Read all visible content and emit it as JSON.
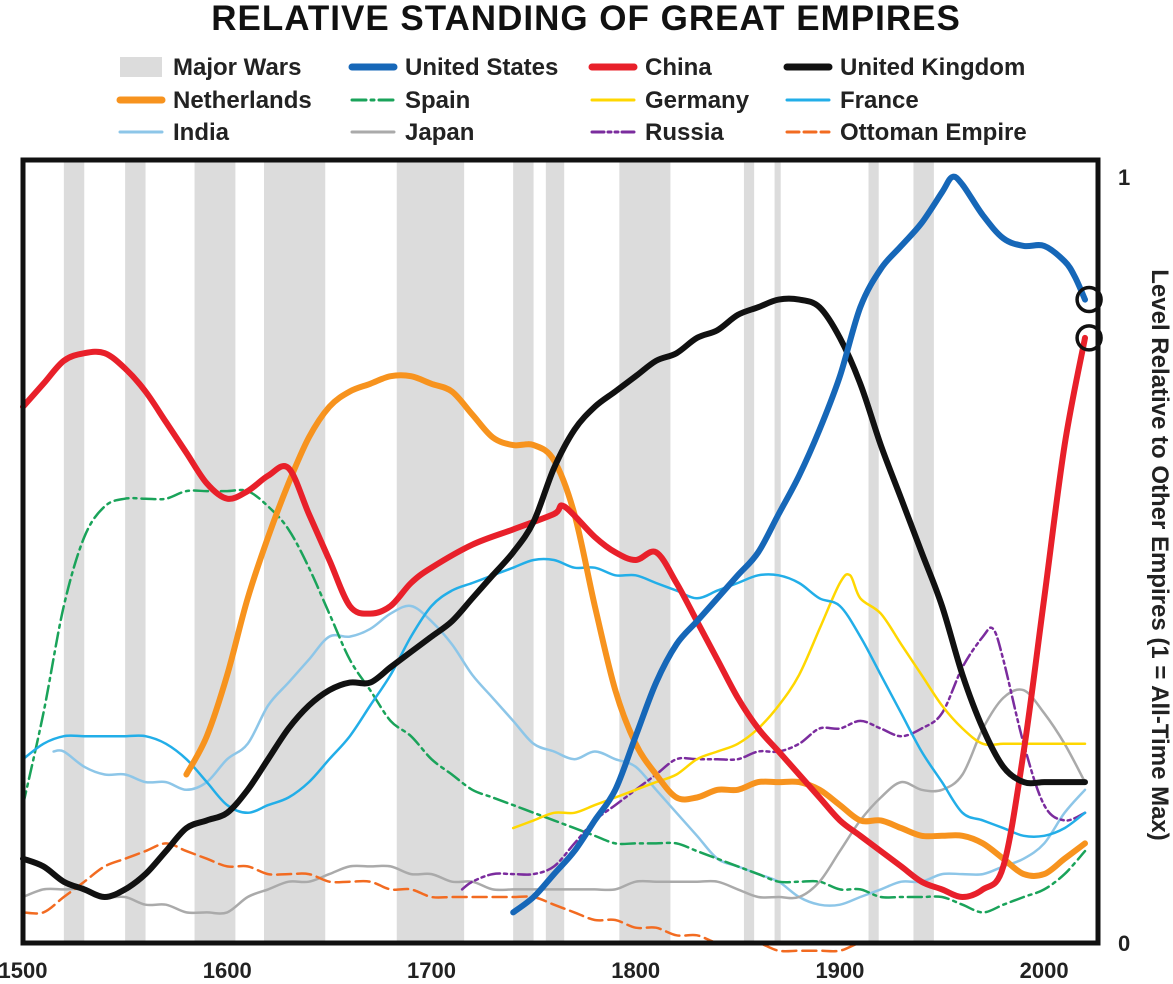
{
  "chart_data": {
    "type": "line",
    "title": "RELATIVE STANDING OF GREAT EMPIRES",
    "xlabel": "",
    "ylabel": "Level Relative to Other Empires (1 = All-Time Max)",
    "xlim": [
      1500,
      2030
    ],
    "ylim": [
      0,
      1
    ],
    "x_ticks": [
      "1500",
      "1600",
      "1700",
      "1800",
      "1900",
      "2000"
    ],
    "y_ticks": [
      "0",
      "1"
    ],
    "major_wars_label": "Major Wars",
    "major_wars_color": "#dcdcdc",
    "major_wars": [
      [
        1520,
        1530
      ],
      [
        1550,
        1560
      ],
      [
        1584,
        1604
      ],
      [
        1618,
        1648
      ],
      [
        1683,
        1716
      ],
      [
        1740,
        1750
      ],
      [
        1756,
        1765
      ],
      [
        1792,
        1817
      ],
      [
        1853,
        1858
      ],
      [
        1868,
        1871
      ],
      [
        1914,
        1919
      ],
      [
        1936,
        1946
      ]
    ],
    "series": [
      {
        "name": "United States",
        "color": "#1667b8",
        "width": 6,
        "dash": "",
        "x": [
          1740,
          1750,
          1760,
          1770,
          1780,
          1790,
          1800,
          1810,
          1820,
          1830,
          1840,
          1850,
          1860,
          1870,
          1880,
          1890,
          1900,
          1910,
          1920,
          1930,
          1940,
          1950,
          1955,
          1960,
          1970,
          1980,
          1990,
          2000,
          2010,
          2015,
          2020
        ],
        "y": [
          0.04,
          0.06,
          0.09,
          0.12,
          0.16,
          0.2,
          0.27,
          0.34,
          0.39,
          0.42,
          0.45,
          0.48,
          0.51,
          0.56,
          0.61,
          0.67,
          0.74,
          0.83,
          0.88,
          0.91,
          0.94,
          0.98,
          1.0,
          0.99,
          0.95,
          0.92,
          0.91,
          0.91,
          0.89,
          0.87,
          0.84
        ]
      },
      {
        "name": "China",
        "color": "#e8202a",
        "width": 6,
        "dash": "",
        "x": [
          1500,
          1510,
          1520,
          1530,
          1540,
          1550,
          1560,
          1570,
          1580,
          1590,
          1600,
          1610,
          1620,
          1630,
          1640,
          1650,
          1660,
          1670,
          1680,
          1690,
          1700,
          1720,
          1740,
          1760,
          1765,
          1780,
          1790,
          1800,
          1810,
          1820,
          1830,
          1840,
          1850,
          1860,
          1870,
          1880,
          1890,
          1900,
          1910,
          1920,
          1930,
          1940,
          1950,
          1960,
          1970,
          1980,
          1990,
          2000,
          2010,
          2020
        ],
        "y": [
          0.7,
          0.73,
          0.76,
          0.77,
          0.77,
          0.75,
          0.72,
          0.68,
          0.64,
          0.6,
          0.58,
          0.59,
          0.61,
          0.62,
          0.56,
          0.5,
          0.44,
          0.43,
          0.44,
          0.47,
          0.49,
          0.52,
          0.54,
          0.56,
          0.57,
          0.53,
          0.51,
          0.5,
          0.51,
          0.47,
          0.42,
          0.37,
          0.32,
          0.28,
          0.25,
          0.22,
          0.19,
          0.16,
          0.14,
          0.12,
          0.1,
          0.08,
          0.07,
          0.06,
          0.07,
          0.1,
          0.25,
          0.45,
          0.65,
          0.79
        ]
      },
      {
        "name": "United Kingdom",
        "color": "#111111",
        "width": 6,
        "dash": "",
        "x": [
          1500,
          1510,
          1520,
          1530,
          1540,
          1550,
          1560,
          1570,
          1580,
          1590,
          1600,
          1610,
          1620,
          1630,
          1640,
          1650,
          1660,
          1670,
          1680,
          1690,
          1700,
          1710,
          1720,
          1730,
          1740,
          1750,
          1760,
          1770,
          1780,
          1790,
          1800,
          1810,
          1820,
          1830,
          1840,
          1850,
          1860,
          1870,
          1880,
          1890,
          1900,
          1910,
          1920,
          1930,
          1940,
          1950,
          1960,
          1970,
          1980,
          1990,
          2000,
          2010,
          2020
        ],
        "y": [
          0.11,
          0.1,
          0.08,
          0.07,
          0.06,
          0.07,
          0.09,
          0.12,
          0.15,
          0.16,
          0.17,
          0.2,
          0.24,
          0.28,
          0.31,
          0.33,
          0.34,
          0.34,
          0.36,
          0.38,
          0.4,
          0.42,
          0.45,
          0.48,
          0.51,
          0.55,
          0.62,
          0.67,
          0.7,
          0.72,
          0.74,
          0.76,
          0.77,
          0.79,
          0.8,
          0.82,
          0.83,
          0.84,
          0.84,
          0.83,
          0.79,
          0.73,
          0.65,
          0.58,
          0.51,
          0.44,
          0.35,
          0.28,
          0.23,
          0.21,
          0.21,
          0.21,
          0.21
        ]
      },
      {
        "name": "Netherlands",
        "color": "#f7931e",
        "width": 6,
        "dash": "",
        "x": [
          1580,
          1590,
          1600,
          1610,
          1620,
          1630,
          1640,
          1650,
          1660,
          1670,
          1680,
          1690,
          1700,
          1710,
          1720,
          1730,
          1740,
          1750,
          1760,
          1770,
          1780,
          1790,
          1800,
          1810,
          1820,
          1830,
          1840,
          1850,
          1860,
          1870,
          1880,
          1890,
          1900,
          1910,
          1920,
          1930,
          1940,
          1950,
          1960,
          1970,
          1980,
          1990,
          2000,
          2010,
          2020
        ],
        "y": [
          0.22,
          0.27,
          0.35,
          0.45,
          0.53,
          0.6,
          0.66,
          0.7,
          0.72,
          0.73,
          0.74,
          0.74,
          0.73,
          0.72,
          0.69,
          0.66,
          0.65,
          0.65,
          0.63,
          0.56,
          0.44,
          0.33,
          0.26,
          0.22,
          0.19,
          0.19,
          0.2,
          0.2,
          0.21,
          0.21,
          0.21,
          0.2,
          0.18,
          0.16,
          0.16,
          0.15,
          0.14,
          0.14,
          0.14,
          0.13,
          0.11,
          0.09,
          0.09,
          0.11,
          0.13
        ]
      },
      {
        "name": "Spain",
        "color": "#1aa35a",
        "width": 2.5,
        "dash": "14 5 3 5",
        "x": [
          1500,
          1510,
          1520,
          1530,
          1540,
          1550,
          1560,
          1570,
          1580,
          1590,
          1600,
          1610,
          1620,
          1630,
          1640,
          1650,
          1660,
          1670,
          1680,
          1690,
          1700,
          1710,
          1720,
          1730,
          1740,
          1750,
          1760,
          1770,
          1780,
          1790,
          1800,
          1810,
          1820,
          1830,
          1840,
          1850,
          1860,
          1870,
          1880,
          1890,
          1900,
          1910,
          1920,
          1930,
          1940,
          1950,
          1960,
          1970,
          1980,
          1990,
          2000,
          2010,
          2020
        ],
        "y": [
          0.18,
          0.3,
          0.44,
          0.53,
          0.57,
          0.58,
          0.58,
          0.58,
          0.59,
          0.59,
          0.59,
          0.59,
          0.57,
          0.54,
          0.49,
          0.43,
          0.37,
          0.33,
          0.29,
          0.27,
          0.24,
          0.22,
          0.2,
          0.19,
          0.18,
          0.17,
          0.16,
          0.15,
          0.14,
          0.13,
          0.13,
          0.13,
          0.13,
          0.12,
          0.11,
          0.1,
          0.09,
          0.08,
          0.08,
          0.08,
          0.07,
          0.07,
          0.06,
          0.06,
          0.06,
          0.06,
          0.05,
          0.04,
          0.05,
          0.06,
          0.07,
          0.09,
          0.12
        ]
      },
      {
        "name": "Germany",
        "color": "#ffd700",
        "width": 2.5,
        "dash": "",
        "x": [
          1740,
          1750,
          1760,
          1770,
          1780,
          1790,
          1800,
          1810,
          1820,
          1830,
          1840,
          1850,
          1860,
          1870,
          1880,
          1890,
          1900,
          1905,
          1910,
          1920,
          1930,
          1940,
          1950,
          1960,
          1970,
          1980,
          1990,
          2000,
          2010,
          2020
        ],
        "y": [
          0.15,
          0.16,
          0.17,
          0.17,
          0.18,
          0.19,
          0.2,
          0.21,
          0.22,
          0.24,
          0.25,
          0.26,
          0.28,
          0.31,
          0.35,
          0.41,
          0.47,
          0.48,
          0.45,
          0.43,
          0.39,
          0.35,
          0.31,
          0.28,
          0.26,
          0.26,
          0.26,
          0.26,
          0.26,
          0.26
        ]
      },
      {
        "name": "France",
        "color": "#22aee8",
        "width": 2.5,
        "dash": "",
        "x": [
          1500,
          1510,
          1520,
          1530,
          1540,
          1550,
          1560,
          1570,
          1580,
          1590,
          1600,
          1610,
          1620,
          1630,
          1640,
          1650,
          1660,
          1670,
          1680,
          1690,
          1700,
          1710,
          1720,
          1730,
          1740,
          1750,
          1760,
          1770,
          1780,
          1790,
          1800,
          1810,
          1820,
          1830,
          1840,
          1850,
          1860,
          1870,
          1880,
          1890,
          1900,
          1910,
          1920,
          1930,
          1940,
          1950,
          1960,
          1970,
          1980,
          1990,
          2000,
          2010,
          2020
        ],
        "y": [
          0.24,
          0.26,
          0.27,
          0.27,
          0.27,
          0.27,
          0.27,
          0.26,
          0.24,
          0.21,
          0.18,
          0.17,
          0.18,
          0.19,
          0.21,
          0.24,
          0.27,
          0.31,
          0.35,
          0.4,
          0.44,
          0.46,
          0.47,
          0.48,
          0.49,
          0.5,
          0.5,
          0.49,
          0.49,
          0.48,
          0.48,
          0.47,
          0.46,
          0.45,
          0.46,
          0.47,
          0.48,
          0.48,
          0.47,
          0.45,
          0.44,
          0.4,
          0.35,
          0.3,
          0.25,
          0.21,
          0.17,
          0.16,
          0.15,
          0.14,
          0.14,
          0.15,
          0.17
        ]
      },
      {
        "name": "India",
        "color": "#8dc6e8",
        "width": 2.5,
        "dash": "",
        "x": [
          1515,
          1520,
          1530,
          1540,
          1550,
          1560,
          1570,
          1580,
          1590,
          1600,
          1610,
          1620,
          1630,
          1640,
          1650,
          1660,
          1670,
          1680,
          1690,
          1700,
          1710,
          1720,
          1730,
          1740,
          1750,
          1760,
          1770,
          1780,
          1790,
          1800,
          1810,
          1820,
          1830,
          1840,
          1850,
          1860,
          1870,
          1880,
          1890,
          1900,
          1910,
          1920,
          1930,
          1940,
          1950,
          1960,
          1970,
          1980,
          1990,
          2000,
          2010,
          2020
        ],
        "y": [
          0.25,
          0.25,
          0.23,
          0.22,
          0.22,
          0.21,
          0.21,
          0.2,
          0.21,
          0.24,
          0.26,
          0.31,
          0.34,
          0.37,
          0.4,
          0.4,
          0.41,
          0.43,
          0.44,
          0.42,
          0.39,
          0.35,
          0.32,
          0.29,
          0.26,
          0.25,
          0.24,
          0.25,
          0.24,
          0.23,
          0.2,
          0.17,
          0.14,
          0.11,
          0.1,
          0.09,
          0.08,
          0.06,
          0.05,
          0.05,
          0.06,
          0.07,
          0.08,
          0.08,
          0.09,
          0.09,
          0.09,
          0.1,
          0.11,
          0.13,
          0.17,
          0.2
        ]
      },
      {
        "name": "Japan",
        "color": "#aaaaaa",
        "width": 2.5,
        "dash": "",
        "x": [
          1500,
          1510,
          1520,
          1530,
          1540,
          1550,
          1560,
          1570,
          1580,
          1590,
          1600,
          1610,
          1620,
          1630,
          1640,
          1650,
          1660,
          1670,
          1680,
          1690,
          1700,
          1710,
          1720,
          1730,
          1740,
          1750,
          1760,
          1770,
          1780,
          1790,
          1800,
          1810,
          1820,
          1830,
          1840,
          1850,
          1860,
          1870,
          1880,
          1890,
          1900,
          1910,
          1920,
          1930,
          1940,
          1950,
          1960,
          1970,
          1980,
          1990,
          2000,
          2010,
          2020
        ],
        "y": [
          0.06,
          0.07,
          0.07,
          0.07,
          0.06,
          0.06,
          0.05,
          0.05,
          0.04,
          0.04,
          0.04,
          0.06,
          0.07,
          0.08,
          0.08,
          0.09,
          0.1,
          0.1,
          0.1,
          0.09,
          0.09,
          0.08,
          0.08,
          0.07,
          0.07,
          0.07,
          0.07,
          0.07,
          0.07,
          0.07,
          0.08,
          0.08,
          0.08,
          0.08,
          0.08,
          0.07,
          0.06,
          0.06,
          0.06,
          0.08,
          0.12,
          0.16,
          0.19,
          0.21,
          0.2,
          0.2,
          0.22,
          0.28,
          0.32,
          0.33,
          0.3,
          0.26,
          0.21
        ]
      },
      {
        "name": "Russia",
        "color": "#7b2c9e",
        "width": 2.5,
        "dash": "12 4 3 4 3 4",
        "x": [
          1715,
          1720,
          1730,
          1740,
          1750,
          1760,
          1770,
          1780,
          1790,
          1800,
          1810,
          1820,
          1830,
          1840,
          1850,
          1860,
          1870,
          1880,
          1890,
          1900,
          1910,
          1920,
          1930,
          1940,
          1950,
          1960,
          1970,
          1975,
          1980,
          1990,
          2000,
          2010,
          2020
        ],
        "y": [
          0.07,
          0.08,
          0.09,
          0.09,
          0.09,
          0.1,
          0.13,
          0.16,
          0.18,
          0.2,
          0.22,
          0.24,
          0.24,
          0.24,
          0.24,
          0.25,
          0.25,
          0.26,
          0.28,
          0.28,
          0.29,
          0.28,
          0.27,
          0.28,
          0.3,
          0.36,
          0.4,
          0.41,
          0.37,
          0.26,
          0.18,
          0.16,
          0.17
        ]
      },
      {
        "name": "Ottoman Empire",
        "color": "#f26b21",
        "width": 2.5,
        "dash": "14 6",
        "x": [
          1500,
          1510,
          1520,
          1530,
          1540,
          1550,
          1560,
          1570,
          1580,
          1590,
          1600,
          1610,
          1620,
          1630,
          1640,
          1650,
          1660,
          1670,
          1680,
          1690,
          1700,
          1710,
          1720,
          1730,
          1740,
          1750,
          1760,
          1770,
          1780,
          1790,
          1800,
          1810,
          1820,
          1830,
          1840,
          1850,
          1860,
          1870,
          1880,
          1890,
          1900,
          1910,
          1920
        ],
        "y": [
          0.04,
          0.04,
          0.06,
          0.08,
          0.1,
          0.11,
          0.12,
          0.13,
          0.12,
          0.11,
          0.1,
          0.1,
          0.09,
          0.09,
          0.09,
          0.08,
          0.08,
          0.08,
          0.07,
          0.07,
          0.06,
          0.06,
          0.06,
          0.06,
          0.06,
          0.06,
          0.05,
          0.04,
          0.03,
          0.03,
          0.02,
          0.02,
          0.01,
          0.01,
          0.0,
          0.0,
          0.0,
          -0.01,
          -0.01,
          -0.01,
          -0.01,
          0.0,
          0.0
        ]
      }
    ],
    "highlight_points": [
      {
        "series": "United States",
        "x": 2022,
        "y": 0.84
      },
      {
        "series": "China",
        "x": 2022,
        "y": 0.79
      }
    ]
  }
}
